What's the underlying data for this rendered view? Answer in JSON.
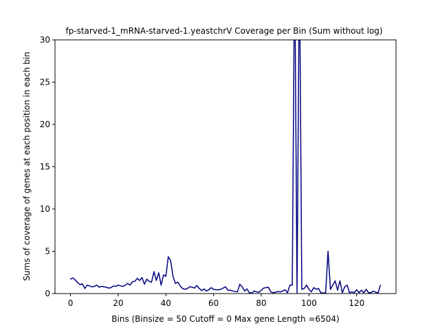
{
  "chart_data": {
    "type": "line",
    "title": "fp-starved-1_mRNA-starved-1.yeastchrV Coverage per Bin (Sum without log)",
    "xlabel": "Bins  (Binsize = 50 Cutoff = 0 Max gene Length =6504)",
    "ylabel": "Sums of coverage of genes at each position in each bin",
    "xlim": [
      -6.5,
      136.5
    ],
    "ylim": [
      0,
      30
    ],
    "xticks": [
      0,
      20,
      40,
      60,
      80,
      100,
      120
    ],
    "yticks": [
      0,
      5,
      10,
      15,
      20,
      25,
      30
    ],
    "grid": false,
    "legend": "none",
    "line_color": "#000080",
    "series": [
      {
        "x": [
          0,
          1,
          2,
          3,
          4,
          5,
          6,
          7,
          8,
          9,
          10,
          11,
          12,
          13,
          14,
          15,
          16,
          17,
          18,
          19,
          20,
          21,
          22,
          23,
          24,
          25,
          26,
          27,
          28,
          29,
          30,
          31,
          32,
          33,
          34,
          35,
          36,
          37,
          38,
          39,
          40,
          41,
          42,
          43,
          44,
          45,
          46,
          47,
          48,
          49,
          50,
          51,
          52,
          53,
          54,
          55,
          56,
          57,
          58,
          59,
          60,
          61,
          62,
          63,
          64,
          65,
          66,
          67,
          68,
          69,
          70,
          71,
          72,
          73,
          74,
          75,
          76,
          77,
          78,
          79,
          80,
          81,
          82,
          83,
          84,
          85,
          86,
          87,
          88,
          89,
          90,
          91,
          92,
          93,
          94,
          95,
          96,
          97,
          98,
          99,
          100,
          101,
          102,
          103,
          104,
          105,
          106,
          107,
          108,
          109,
          110,
          111,
          112,
          113,
          114,
          115,
          116,
          117,
          118,
          119,
          120,
          121,
          122,
          123,
          124,
          125,
          126,
          127,
          128,
          129,
          130
        ],
        "values": [
          1.7,
          1.85,
          1.6,
          1.3,
          1.05,
          1.15,
          0.6,
          1.0,
          0.9,
          0.8,
          0.85,
          1.0,
          0.75,
          0.85,
          0.8,
          0.75,
          0.65,
          0.7,
          0.9,
          0.85,
          1.0,
          0.9,
          0.85,
          1.0,
          1.2,
          1.0,
          1.4,
          1.45,
          1.8,
          1.55,
          1.9,
          1.1,
          1.7,
          1.45,
          1.35,
          2.6,
          1.55,
          2.45,
          1.0,
          2.2,
          2.05,
          4.35,
          3.9,
          2.0,
          1.2,
          1.35,
          0.9,
          0.6,
          0.5,
          0.6,
          0.8,
          0.75,
          0.65,
          0.95,
          0.6,
          0.35,
          0.55,
          0.3,
          0.45,
          0.7,
          0.5,
          0.45,
          0.45,
          0.5,
          0.65,
          0.8,
          0.4,
          0.4,
          0.3,
          0.25,
          0.2,
          1.1,
          0.8,
          0.3,
          0.55,
          0.1,
          0.05,
          0.3,
          0.2,
          0.15,
          0.4,
          0.65,
          0.7,
          0.75,
          0.2,
          0.1,
          0.15,
          0.25,
          0.2,
          0.3,
          0.45,
          0.1,
          1.0,
          1.0,
          40,
          0.05,
          40,
          0.5,
          0.6,
          1.0,
          0.5,
          0.2,
          0.7,
          0.5,
          0.6,
          0.1,
          0.05,
          0.1,
          5.0,
          0.5,
          1.0,
          1.5,
          0.4,
          1.5,
          0.1,
          0.8,
          1.0,
          0.1,
          0.2,
          0.1,
          0.45,
          0.1,
          0.4,
          0.1,
          0.5,
          0.1,
          0.1,
          0.3,
          0.15,
          0.1,
          1.0
        ]
      }
    ]
  }
}
